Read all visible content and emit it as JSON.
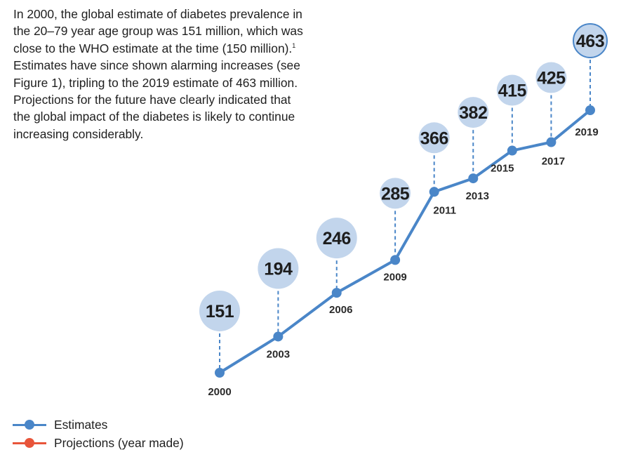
{
  "intro": {
    "part1": "In 2000, the global estimate of diabetes prevalence in the 20–79 year age group was 151 million, which was close to the WHO estimate at the time (150 million).",
    "sup": "1",
    "part2": " Estimates have since shown alarming increases (see Figure 1), tripling to the 2019 estimate of 463 million. Projections for the future have clearly indicated that the global impact of the diabetes is likely to continue increasing considerably."
  },
  "chart_data": {
    "type": "line",
    "title": "",
    "xlabel": "",
    "ylabel": "",
    "x": [
      "2000",
      "2003",
      "2006",
      "2009",
      "2011",
      "2013",
      "2015",
      "2017",
      "2019"
    ],
    "series": [
      {
        "name": "Estimates",
        "values": [
          151,
          194,
          246,
          285,
          366,
          382,
          415,
          425,
          463
        ]
      }
    ],
    "value_labels": [
      "151",
      "194",
      "246",
      "285",
      "366",
      "382",
      "415",
      "425",
      "463"
    ],
    "grid": false,
    "legend_position": "bottom-left"
  },
  "legend": [
    {
      "label": "Estimates",
      "color": "#4a86c8"
    },
    {
      "label": "Projections (year made)",
      "color": "#e8553a"
    }
  ],
  "colors": {
    "line": "#4a86c8",
    "bubble": "#c2d5ec",
    "bubble_highlight_ring": "#4a86c8",
    "connector": "#4a86c8"
  }
}
